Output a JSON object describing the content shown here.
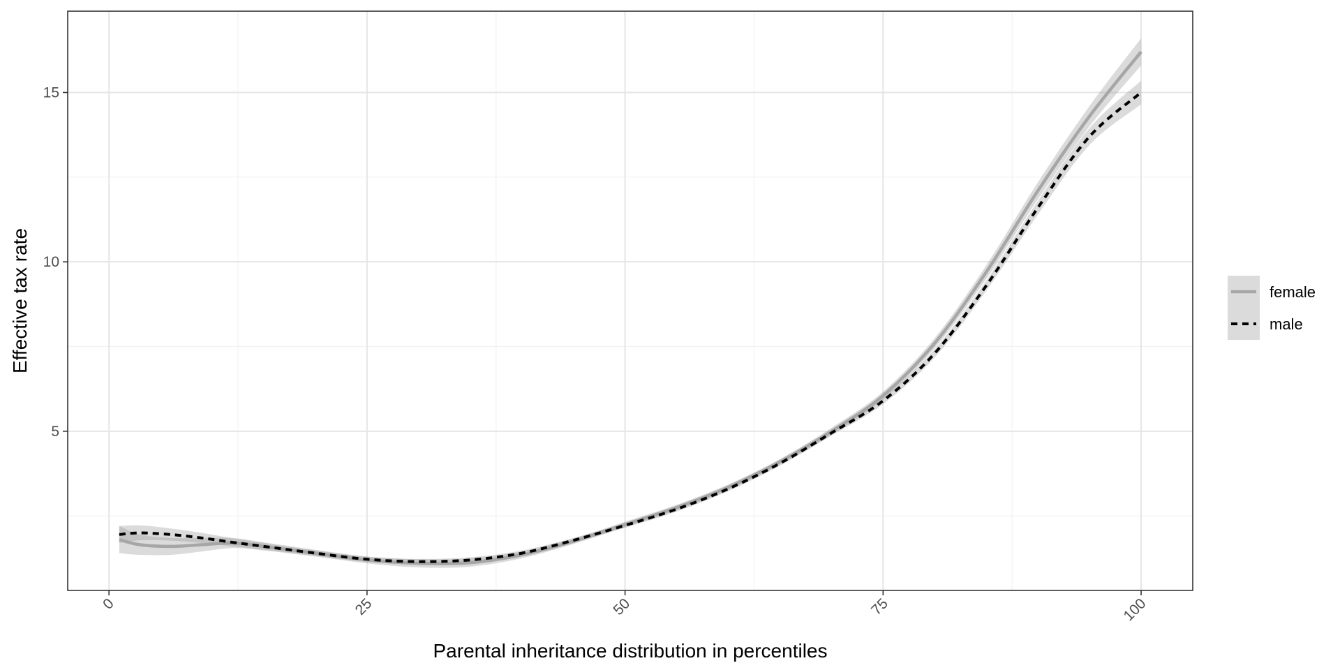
{
  "chart_data": {
    "type": "line",
    "title": "",
    "xlabel": "Parental inheritance distribution in percentiles",
    "ylabel": "Effective tax rate",
    "xlim": [
      -4,
      105
    ],
    "ylim": [
      0.3,
      17.4
    ],
    "x_ticks": [
      0,
      25,
      50,
      75,
      100
    ],
    "x_tick_labels": [
      "0",
      "25",
      "50",
      "75",
      "100"
    ],
    "y_ticks": [
      5,
      10,
      15
    ],
    "y_tick_labels": [
      "5",
      "10",
      "15"
    ],
    "grid": true,
    "legend_position": "right",
    "series": [
      {
        "name": "female",
        "style": "solid",
        "color": "#a6a6a6",
        "x": [
          1,
          3,
          6,
          9,
          12,
          15,
          20,
          25,
          30,
          35,
          40,
          45,
          50,
          55,
          60,
          65,
          70,
          75,
          80,
          85,
          90,
          95,
          100
        ],
        "y": [
          1.8,
          1.65,
          1.6,
          1.65,
          1.7,
          1.6,
          1.4,
          1.2,
          1.1,
          1.12,
          1.35,
          1.75,
          2.25,
          2.75,
          3.35,
          4.1,
          5.0,
          6.05,
          7.6,
          9.7,
          12.1,
          14.3,
          16.2
        ],
        "ci_half_width": [
          0.4,
          0.3,
          0.25,
          0.2,
          0.15,
          0.12,
          0.1,
          0.1,
          0.12,
          0.12,
          0.1,
          0.08,
          0.08,
          0.08,
          0.08,
          0.08,
          0.1,
          0.12,
          0.15,
          0.2,
          0.25,
          0.3,
          0.4
        ]
      },
      {
        "name": "male",
        "style": "dashed",
        "color": "#000000",
        "x": [
          1,
          3,
          6,
          9,
          12,
          15,
          20,
          25,
          30,
          35,
          40,
          45,
          50,
          55,
          60,
          65,
          70,
          75,
          80,
          85,
          90,
          95,
          100
        ],
        "y": [
          1.95,
          2.0,
          1.95,
          1.85,
          1.72,
          1.6,
          1.4,
          1.22,
          1.15,
          1.2,
          1.4,
          1.78,
          2.22,
          2.7,
          3.3,
          4.05,
          4.95,
          5.9,
          7.3,
          9.3,
          11.6,
          13.7,
          15.0
        ],
        "ci_half_width": [
          0.25,
          0.22,
          0.18,
          0.15,
          0.12,
          0.1,
          0.08,
          0.08,
          0.08,
          0.08,
          0.08,
          0.07,
          0.07,
          0.07,
          0.07,
          0.07,
          0.08,
          0.1,
          0.12,
          0.15,
          0.2,
          0.25,
          0.35
        ]
      }
    ]
  }
}
